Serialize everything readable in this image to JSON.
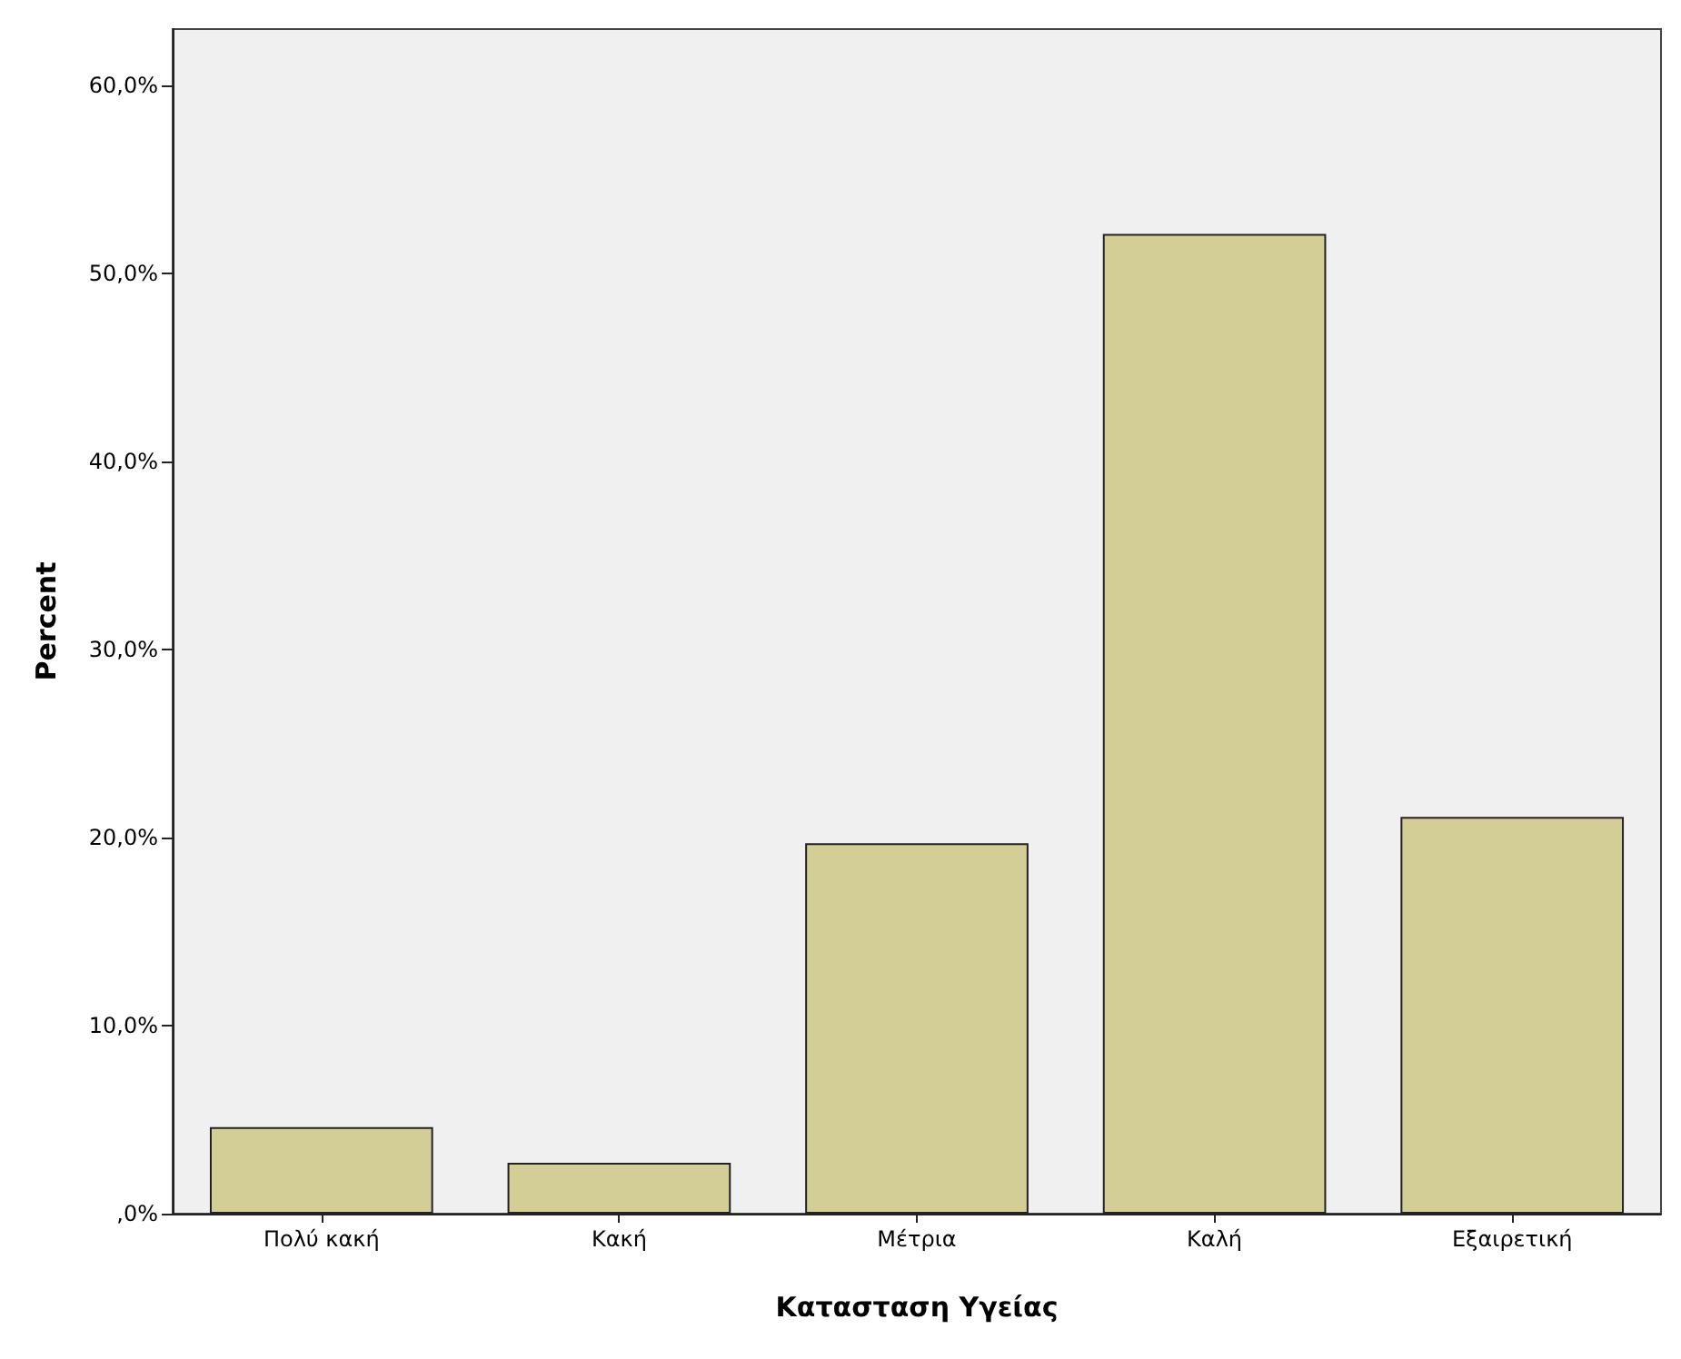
{
  "chart_data": {
    "type": "bar",
    "xlabel": "Κατασταση Υγείας",
    "ylabel": "Percent",
    "categories": [
      "Πολύ κακή",
      "Κακή",
      "Μέτρια",
      "Καλή",
      "Εξαιρετική"
    ],
    "values": [
      4.6,
      2.7,
      19.7,
      52.1,
      21.1
    ],
    "color": "#d3cd96",
    "ylim": [
      0,
      63
    ],
    "yticks": [
      {
        "value": 0,
        "label": ",0%"
      },
      {
        "value": 10,
        "label": "10,0%"
      },
      {
        "value": 20,
        "label": "20,0%"
      },
      {
        "value": 30,
        "label": "30,0%"
      },
      {
        "value": 40,
        "label": "40,0%"
      },
      {
        "value": 50,
        "label": "50,0%"
      },
      {
        "value": 60,
        "label": "60,0%"
      }
    ],
    "grid": false
  }
}
